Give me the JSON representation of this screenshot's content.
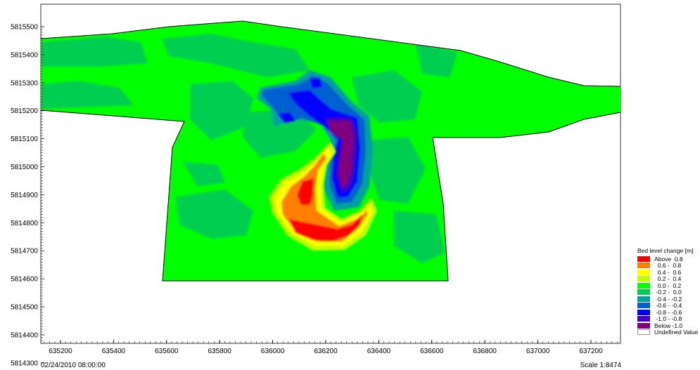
{
  "map": {
    "timestamp": "02/24/2010 08:00:00",
    "scale": "Scale 1:8474",
    "y_axis": {
      "tick_labels": [
        "5815500",
        "5815400",
        "5815300",
        "5815200",
        "5815100",
        "5815000",
        "5814900",
        "5814800",
        "5814700",
        "5814600",
        "5814500",
        "5814400",
        "5814300"
      ]
    },
    "x_axis": {
      "tick_labels": [
        "635200",
        "635400",
        "635600",
        "635800",
        "636000",
        "636200",
        "636400",
        "636600",
        "636800",
        "637000",
        "637200"
      ]
    },
    "legend": {
      "title": "Bed level change [m]",
      "items": [
        {
          "label": "Above  0.8",
          "color": "#ff0000"
        },
        {
          "label": "  0.6 -  0.8",
          "color": "#ff8000"
        },
        {
          "label": "  0.4 -  0.6",
          "color": "#ffff00"
        },
        {
          "label": "  0.2 -  0.4",
          "color": "#bfff00"
        },
        {
          "label": "  0.0 -  0.2",
          "color": "#00ff00"
        },
        {
          "label": " -0.2 -  0.0",
          "color": "#00cc55"
        },
        {
          "label": " -0.4 - -0.2",
          "color": "#00a0a0"
        },
        {
          "label": " -0.6 - -0.4",
          "color": "#0060d0"
        },
        {
          "label": " -0.8 - -0.6",
          "color": "#0000ff"
        },
        {
          "label": " -1.0 - -0.8",
          "color": "#4000c0"
        },
        {
          "label": "Below -1.0",
          "color": "#800080"
        },
        {
          "label": "Undefined Value",
          "color": "#ffffff"
        }
      ]
    }
  }
}
